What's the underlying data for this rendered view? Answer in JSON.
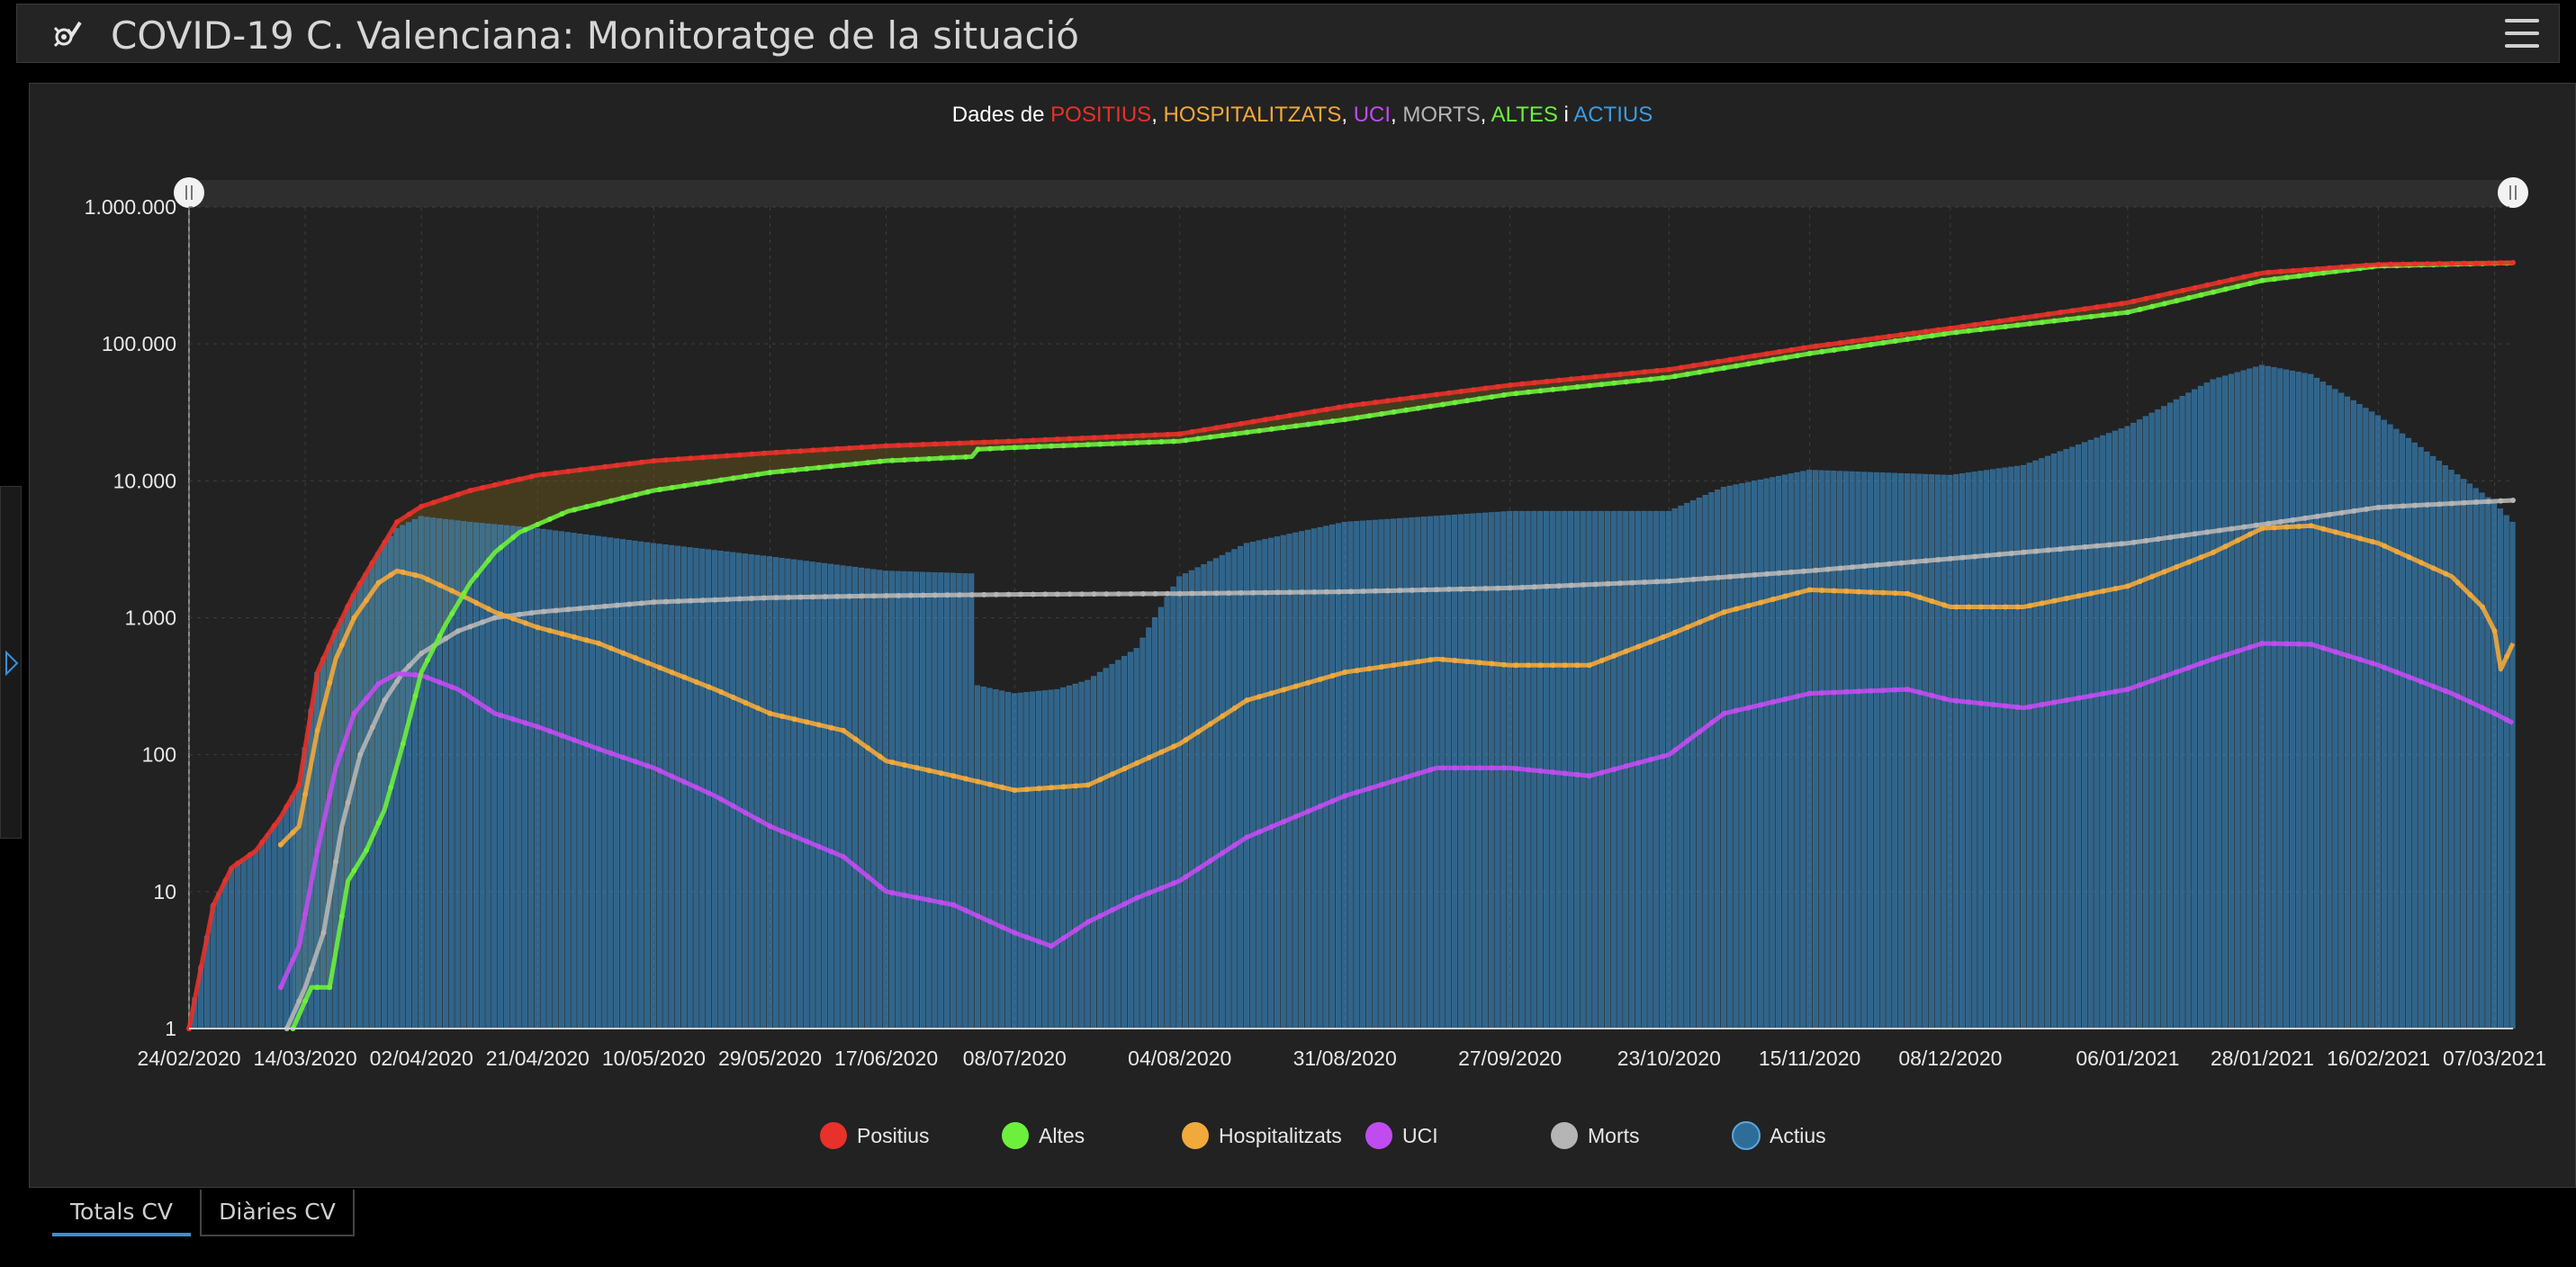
{
  "app": {
    "title": "COVID-19 C. Valenciana: Monitoratge de la situació",
    "logo_icon": "virus-check-icon",
    "menu_icon": "hamburger-menu-icon"
  },
  "tabs": [
    {
      "label": "Totals CV",
      "active": true
    },
    {
      "label": "Diàries CV",
      "active": false
    }
  ],
  "chart_data": {
    "type": "line",
    "title_parts": [
      {
        "text": "Dades de ",
        "color": "#ffffff"
      },
      {
        "text": "POSITIUS",
        "color": "#e8312a"
      },
      {
        "text": ", ",
        "color": "#ffffff"
      },
      {
        "text": "HOSPITALITZATS",
        "color": "#f2a93b"
      },
      {
        "text": ", ",
        "color": "#ffffff"
      },
      {
        "text": "UCI",
        "color": "#c04cf0"
      },
      {
        "text": ", ",
        "color": "#ffffff"
      },
      {
        "text": "MORTS",
        "color": "#b5b5b5"
      },
      {
        "text": ", ",
        "color": "#ffffff"
      },
      {
        "text": "ALTES",
        "color": "#6df03c"
      },
      {
        "text": " i ",
        "color": "#ffffff"
      },
      {
        "text": "ACTIUS",
        "color": "#3d9be0"
      }
    ],
    "y_scale": "log",
    "ylim": [
      1,
      1000000
    ],
    "y_ticks": [
      "1",
      "10",
      "100",
      "1.000",
      "10.000",
      "100.000",
      "1.000.000"
    ],
    "x_range": [
      "24/02/2020",
      "10/03/2021"
    ],
    "x_ticks": [
      "24/02/2020",
      "14/03/2020",
      "02/04/2020",
      "21/04/2020",
      "10/05/2020",
      "29/05/2020",
      "17/06/2020",
      "08/07/2020",
      "04/08/2020",
      "31/08/2020",
      "27/09/2020",
      "23/10/2020",
      "15/11/2020",
      "08/12/2020",
      "06/01/2021",
      "28/01/2021",
      "16/02/2021",
      "07/03/2021"
    ],
    "grid": true,
    "legend_position": "bottom",
    "series": [
      {
        "name": "Positius",
        "color": "#e8312a",
        "chart": "line",
        "x": [
          "24/02/2020",
          "28/02/2020",
          "02/03/2020",
          "06/03/2020",
          "10/03/2020",
          "13/03/2020",
          "16/03/2020",
          "19/03/2020",
          "22/03/2020",
          "26/03/2020",
          "29/03/2020",
          "02/04/2020",
          "10/04/2020",
          "21/04/2020",
          "10/05/2020",
          "29/05/2020",
          "17/06/2020",
          "08/07/2020",
          "04/08/2020",
          "31/08/2020",
          "27/09/2020",
          "23/10/2020",
          "15/11/2020",
          "08/12/2020",
          "06/01/2021",
          "28/01/2021",
          "16/02/2021",
          "07/03/2021",
          "10/03/2021"
        ],
        "y": [
          1,
          8,
          15,
          20,
          35,
          60,
          400,
          800,
          1500,
          3000,
          5000,
          6500,
          8500,
          11000,
          14000,
          16000,
          18000,
          19500,
          22000,
          35000,
          50000,
          65000,
          95000,
          130000,
          200000,
          330000,
          380000,
          390000,
          392000
        ]
      },
      {
        "name": "Altes",
        "color": "#6df03c",
        "chart": "line",
        "x": [
          "12/03/2020",
          "15/03/2020",
          "18/03/2020",
          "21/03/2020",
          "24/03/2020",
          "27/03/2020",
          "30/03/2020",
          "02/04/2020",
          "06/04/2020",
          "10/04/2020",
          "14/04/2020",
          "18/04/2020",
          "21/04/2020",
          "26/04/2020",
          "10/05/2020",
          "29/05/2020",
          "17/06/2020",
          "01/07/2020",
          "02/07/2020",
          "08/07/2020",
          "04/08/2020",
          "31/08/2020",
          "27/09/2020",
          "23/10/2020",
          "15/11/2020",
          "08/12/2020",
          "06/01/2021",
          "28/01/2021",
          "16/02/2021",
          "07/03/2021",
          "10/03/2021"
        ],
        "y": [
          1,
          2,
          2,
          12,
          20,
          40,
          120,
          400,
          900,
          1800,
          3000,
          4200,
          4800,
          6000,
          8500,
          11500,
          14000,
          15000,
          17000,
          17500,
          19500,
          28000,
          43000,
          57000,
          85000,
          120000,
          170000,
          290000,
          370000,
          388000,
          390000
        ]
      },
      {
        "name": "Hospitalitzats",
        "color": "#f2a93b",
        "chart": "line",
        "x": [
          "10/03/2020",
          "13/03/2020",
          "16/03/2020",
          "19/03/2020",
          "22/03/2020",
          "26/03/2020",
          "29/03/2020",
          "02/04/2020",
          "08/04/2020",
          "14/04/2020",
          "21/04/2020",
          "01/05/2020",
          "10/05/2020",
          "20/05/2020",
          "29/05/2020",
          "10/06/2020",
          "17/06/2020",
          "28/06/2020",
          "08/07/2020",
          "20/07/2020",
          "04/08/2020",
          "15/08/2020",
          "31/08/2020",
          "15/09/2020",
          "27/09/2020",
          "10/10/2020",
          "23/10/2020",
          "01/11/2020",
          "15/11/2020",
          "01/12/2020",
          "08/12/2020",
          "20/12/2020",
          "06/01/2021",
          "20/01/2021",
          "28/01/2021",
          "05/02/2021",
          "16/02/2021",
          "28/02/2021",
          "05/03/2021",
          "07/03/2021",
          "08/03/2021",
          "10/03/2021"
        ],
        "y": [
          22,
          30,
          150,
          500,
          1000,
          1800,
          2200,
          2000,
          1500,
          1100,
          850,
          650,
          450,
          300,
          200,
          150,
          90,
          70,
          55,
          60,
          120,
          250,
          400,
          500,
          450,
          450,
          750,
          1100,
          1600,
          1500,
          1200,
          1200,
          1700,
          3000,
          4500,
          4700,
          3500,
          2000,
          1200,
          800,
          420,
          650
        ]
      },
      {
        "name": "UCI",
        "color": "#c04cf0",
        "chart": "line",
        "x": [
          "10/03/2020",
          "13/03/2020",
          "16/03/2020",
          "19/03/2020",
          "22/03/2020",
          "26/03/2020",
          "29/03/2020",
          "02/04/2020",
          "08/04/2020",
          "14/04/2020",
          "21/04/2020",
          "01/05/2020",
          "10/05/2020",
          "20/05/2020",
          "29/05/2020",
          "10/06/2020",
          "17/06/2020",
          "28/06/2020",
          "08/07/2020",
          "14/07/2020",
          "20/07/2020",
          "28/07/2020",
          "04/08/2020",
          "15/08/2020",
          "31/08/2020",
          "15/09/2020",
          "27/09/2020",
          "10/10/2020",
          "23/10/2020",
          "01/11/2020",
          "15/11/2020",
          "01/12/2020",
          "08/12/2020",
          "20/12/2020",
          "06/01/2021",
          "20/01/2021",
          "28/01/2021",
          "05/02/2021",
          "16/02/2021",
          "28/02/2021",
          "07/03/2021",
          "10/03/2021"
        ],
        "y": [
          2,
          4,
          20,
          80,
          200,
          330,
          390,
          380,
          300,
          200,
          160,
          110,
          80,
          50,
          30,
          18,
          10,
          8,
          5,
          4,
          6,
          9,
          12,
          25,
          50,
          80,
          80,
          70,
          100,
          200,
          280,
          300,
          250,
          220,
          300,
          500,
          650,
          640,
          450,
          280,
          200,
          170
        ]
      },
      {
        "name": "Morts",
        "color": "#b5b5b5",
        "chart": "line",
        "x": [
          "11/03/2020",
          "14/03/2020",
          "17/03/2020",
          "20/03/2020",
          "23/03/2020",
          "27/03/2020",
          "30/03/2020",
          "02/04/2020",
          "08/04/2020",
          "14/04/2020",
          "21/04/2020",
          "10/05/2020",
          "29/05/2020",
          "17/06/2020",
          "08/07/2020",
          "04/08/2020",
          "31/08/2020",
          "27/09/2020",
          "23/10/2020",
          "15/11/2020",
          "08/12/2020",
          "06/01/2021",
          "28/01/2021",
          "16/02/2021",
          "07/03/2021",
          "10/03/2021"
        ],
        "y": [
          1,
          2,
          5,
          30,
          100,
          250,
          400,
          550,
          800,
          1000,
          1100,
          1300,
          1400,
          1450,
          1480,
          1500,
          1550,
          1650,
          1850,
          2200,
          2700,
          3500,
          4800,
          6400,
          7100,
          7200
        ]
      },
      {
        "name": "Actius",
        "color": "#3d9be0",
        "chart": "bar",
        "x": [
          "24/02/2020",
          "28/02/2020",
          "02/03/2020",
          "06/03/2020",
          "10/03/2020",
          "13/03/2020",
          "16/03/2020",
          "19/03/2020",
          "22/03/2020",
          "26/03/2020",
          "29/03/2020",
          "02/04/2020",
          "10/04/2020",
          "21/04/2020",
          "10/05/2020",
          "29/05/2020",
          "17/06/2020",
          "01/07/2020",
          "02/07/2020",
          "08/07/2020",
          "15/07/2020",
          "20/07/2020",
          "28/07/2020",
          "04/08/2020",
          "15/08/2020",
          "31/08/2020",
          "27/09/2020",
          "23/10/2020",
          "01/11/2020",
          "15/11/2020",
          "08/12/2020",
          "20/12/2020",
          "06/01/2021",
          "20/01/2021",
          "28/01/2021",
          "05/02/2021",
          "16/02/2021",
          "28/02/2021",
          "07/03/2021",
          "10/03/2021"
        ],
        "y": [
          1,
          8,
          15,
          20,
          35,
          60,
          400,
          800,
          1500,
          3000,
          4500,
          5500,
          5000,
          4500,
          3500,
          2800,
          2200,
          2100,
          320,
          280,
          300,
          350,
          600,
          2000,
          3500,
          5000,
          6000,
          6000,
          9000,
          12000,
          11000,
          13000,
          25000,
          55000,
          70000,
          60000,
          30000,
          12000,
          7000,
          5000
        ]
      }
    ]
  }
}
